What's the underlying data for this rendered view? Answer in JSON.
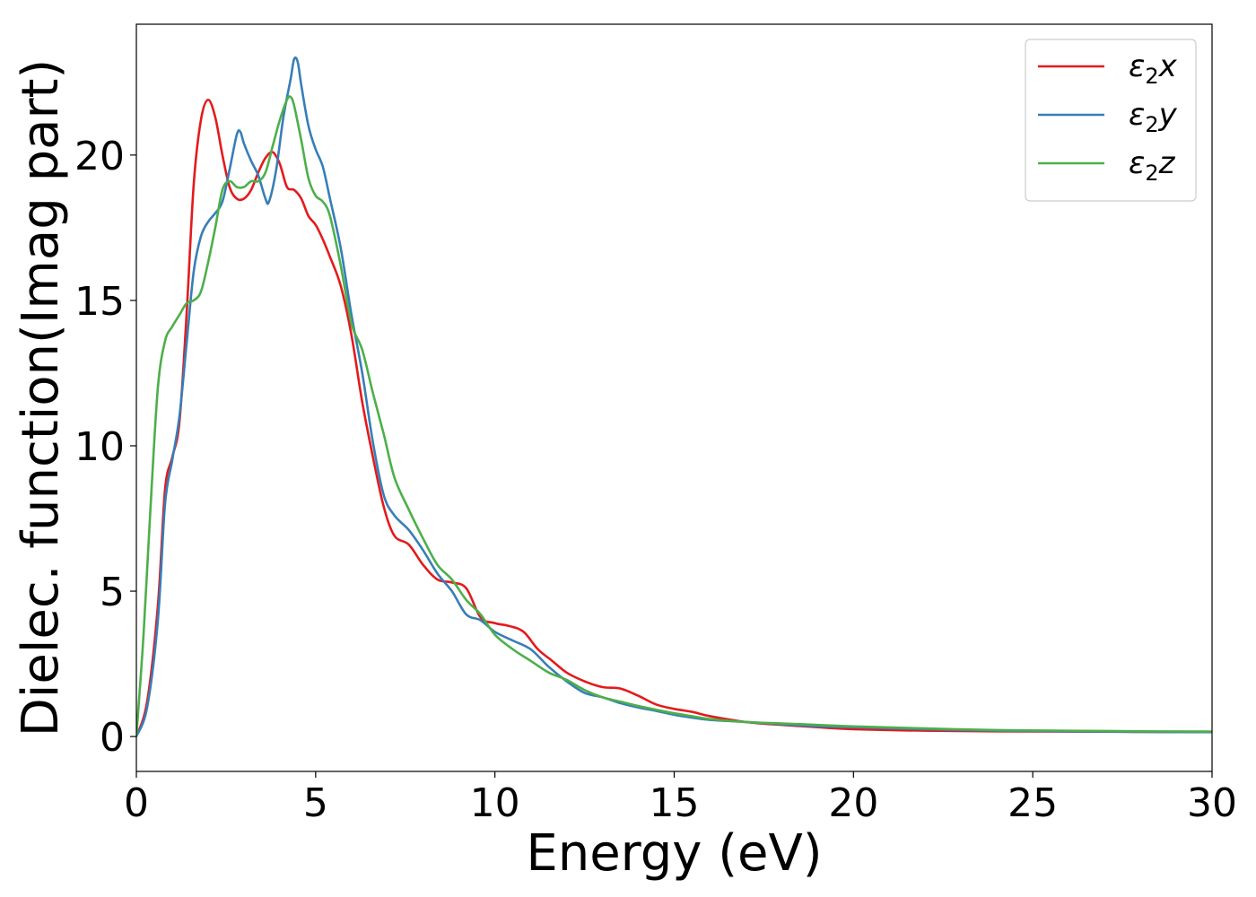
{
  "chart_data": {
    "type": "line",
    "xlabel": "Energy (eV)",
    "ylabel": "Dielec. function(Imag part)",
    "xlim": [
      0,
      30
    ],
    "ylim": [
      -1.2,
      24.5
    ],
    "xticks": [
      0,
      5,
      10,
      15,
      20,
      25,
      30
    ],
    "yticks": [
      0,
      5,
      10,
      15,
      20
    ],
    "grid": false,
    "legend_position": "top-right",
    "series": [
      {
        "name": "ε2x",
        "label_base": "ε",
        "label_sub": "2",
        "label_var": "x",
        "color": "#e41a1c",
        "points": [
          [
            0,
            0
          ],
          [
            0.3,
            1.2
          ],
          [
            0.6,
            4.5
          ],
          [
            0.8,
            8.5
          ],
          [
            1.0,
            9.6
          ],
          [
            1.2,
            10.8
          ],
          [
            1.4,
            14.5
          ],
          [
            1.6,
            19.0
          ],
          [
            1.8,
            21.2
          ],
          [
            2.0,
            21.9
          ],
          [
            2.2,
            21.3
          ],
          [
            2.4,
            20.0
          ],
          [
            2.6,
            18.9
          ],
          [
            2.8,
            18.5
          ],
          [
            3.0,
            18.5
          ],
          [
            3.2,
            18.8
          ],
          [
            3.4,
            19.4
          ],
          [
            3.6,
            19.9
          ],
          [
            3.8,
            20.1
          ],
          [
            4.0,
            19.7
          ],
          [
            4.2,
            18.9
          ],
          [
            4.4,
            18.8
          ],
          [
            4.6,
            18.5
          ],
          [
            4.8,
            17.9
          ],
          [
            5.0,
            17.6
          ],
          [
            5.2,
            17.1
          ],
          [
            5.4,
            16.5
          ],
          [
            5.7,
            15.5
          ],
          [
            6.0,
            13.8
          ],
          [
            6.3,
            11.5
          ],
          [
            6.6,
            9.6
          ],
          [
            6.9,
            7.9
          ],
          [
            7.2,
            6.9
          ],
          [
            7.6,
            6.6
          ],
          [
            8.0,
            5.9
          ],
          [
            8.4,
            5.4
          ],
          [
            8.8,
            5.3
          ],
          [
            9.2,
            5.1
          ],
          [
            9.6,
            4.1
          ],
          [
            10.0,
            3.9
          ],
          [
            10.4,
            3.8
          ],
          [
            10.8,
            3.6
          ],
          [
            11.2,
            3.0
          ],
          [
            11.6,
            2.6
          ],
          [
            12.0,
            2.2
          ],
          [
            12.5,
            1.9
          ],
          [
            13.0,
            1.7
          ],
          [
            13.5,
            1.65
          ],
          [
            14.0,
            1.4
          ],
          [
            14.5,
            1.1
          ],
          [
            15.0,
            0.95
          ],
          [
            15.5,
            0.85
          ],
          [
            16.0,
            0.7
          ],
          [
            17.0,
            0.5
          ],
          [
            18.0,
            0.4
          ],
          [
            19.0,
            0.32
          ],
          [
            20.0,
            0.25
          ],
          [
            22.0,
            0.2
          ],
          [
            24.0,
            0.18
          ],
          [
            26.0,
            0.17
          ],
          [
            28.0,
            0.16
          ],
          [
            30.0,
            0.15
          ]
        ]
      },
      {
        "name": "ε2y",
        "label_base": "ε",
        "label_sub": "2",
        "label_var": "y",
        "color": "#377eb8",
        "points": [
          [
            0,
            0
          ],
          [
            0.3,
            1.0
          ],
          [
            0.6,
            4.0
          ],
          [
            0.8,
            8.0
          ],
          [
            1.0,
            9.5
          ],
          [
            1.2,
            11.0
          ],
          [
            1.4,
            13.5
          ],
          [
            1.6,
            16.0
          ],
          [
            1.8,
            17.2
          ],
          [
            2.0,
            17.7
          ],
          [
            2.2,
            18.0
          ],
          [
            2.4,
            18.4
          ],
          [
            2.6,
            19.5
          ],
          [
            2.8,
            20.7
          ],
          [
            2.9,
            20.8
          ],
          [
            3.0,
            20.4
          ],
          [
            3.2,
            19.8
          ],
          [
            3.4,
            19.3
          ],
          [
            3.6,
            18.5
          ],
          [
            3.7,
            18.4
          ],
          [
            3.9,
            19.5
          ],
          [
            4.1,
            21.3
          ],
          [
            4.3,
            22.6
          ],
          [
            4.4,
            23.3
          ],
          [
            4.5,
            23.2
          ],
          [
            4.6,
            22.4
          ],
          [
            4.8,
            21.0
          ],
          [
            5.0,
            20.2
          ],
          [
            5.2,
            19.6
          ],
          [
            5.4,
            18.5
          ],
          [
            5.7,
            16.8
          ],
          [
            6.0,
            14.5
          ],
          [
            6.3,
            12.5
          ],
          [
            6.6,
            10.1
          ],
          [
            6.9,
            8.3
          ],
          [
            7.2,
            7.6
          ],
          [
            7.6,
            7.1
          ],
          [
            8.0,
            6.4
          ],
          [
            8.4,
            5.6
          ],
          [
            8.8,
            5.0
          ],
          [
            9.2,
            4.2
          ],
          [
            9.6,
            4.0
          ],
          [
            10.0,
            3.6
          ],
          [
            10.5,
            3.3
          ],
          [
            11.0,
            3.0
          ],
          [
            11.5,
            2.4
          ],
          [
            12.0,
            1.9
          ],
          [
            12.5,
            1.5
          ],
          [
            13.0,
            1.35
          ],
          [
            13.5,
            1.15
          ],
          [
            14.0,
            1.0
          ],
          [
            14.5,
            0.88
          ],
          [
            15.0,
            0.75
          ],
          [
            15.5,
            0.65
          ],
          [
            16.0,
            0.57
          ],
          [
            17.0,
            0.5
          ],
          [
            18.0,
            0.42
          ],
          [
            19.0,
            0.35
          ],
          [
            20.0,
            0.32
          ],
          [
            22.0,
            0.25
          ],
          [
            24.0,
            0.2
          ],
          [
            26.0,
            0.18
          ],
          [
            28.0,
            0.16
          ],
          [
            30.0,
            0.15
          ]
        ]
      },
      {
        "name": "ε2z",
        "label_base": "ε",
        "label_sub": "2",
        "label_var": "z",
        "color": "#4daf4a",
        "points": [
          [
            0,
            0
          ],
          [
            0.2,
            3.5
          ],
          [
            0.4,
            8.0
          ],
          [
            0.6,
            12.0
          ],
          [
            0.8,
            13.6
          ],
          [
            1.0,
            14.1
          ],
          [
            1.2,
            14.5
          ],
          [
            1.4,
            14.9
          ],
          [
            1.6,
            15.0
          ],
          [
            1.8,
            15.3
          ],
          [
            2.0,
            16.3
          ],
          [
            2.2,
            17.5
          ],
          [
            2.4,
            18.8
          ],
          [
            2.6,
            19.1
          ],
          [
            2.8,
            18.9
          ],
          [
            3.0,
            18.9
          ],
          [
            3.2,
            19.1
          ],
          [
            3.4,
            19.1
          ],
          [
            3.6,
            19.4
          ],
          [
            3.8,
            20.3
          ],
          [
            4.0,
            21.2
          ],
          [
            4.2,
            21.9
          ],
          [
            4.3,
            22.0
          ],
          [
            4.4,
            21.7
          ],
          [
            4.6,
            20.5
          ],
          [
            4.8,
            19.2
          ],
          [
            5.0,
            18.6
          ],
          [
            5.2,
            18.4
          ],
          [
            5.4,
            17.9
          ],
          [
            5.7,
            16.2
          ],
          [
            6.0,
            14.2
          ],
          [
            6.3,
            13.3
          ],
          [
            6.6,
            11.8
          ],
          [
            6.9,
            10.4
          ],
          [
            7.2,
            8.9
          ],
          [
            7.6,
            7.8
          ],
          [
            8.0,
            6.8
          ],
          [
            8.4,
            5.9
          ],
          [
            8.8,
            5.4
          ],
          [
            9.2,
            4.7
          ],
          [
            9.6,
            4.2
          ],
          [
            10.0,
            3.5
          ],
          [
            10.5,
            3.0
          ],
          [
            11.0,
            2.6
          ],
          [
            11.5,
            2.2
          ],
          [
            12.0,
            1.95
          ],
          [
            12.5,
            1.6
          ],
          [
            13.0,
            1.35
          ],
          [
            13.5,
            1.2
          ],
          [
            14.0,
            1.05
          ],
          [
            14.5,
            0.92
          ],
          [
            15.0,
            0.8
          ],
          [
            15.5,
            0.7
          ],
          [
            16.0,
            0.6
          ],
          [
            17.0,
            0.5
          ],
          [
            18.0,
            0.45
          ],
          [
            19.0,
            0.4
          ],
          [
            20.0,
            0.35
          ],
          [
            22.0,
            0.28
          ],
          [
            24.0,
            0.22
          ],
          [
            26.0,
            0.2
          ],
          [
            28.0,
            0.18
          ],
          [
            30.0,
            0.17
          ]
        ]
      }
    ]
  }
}
